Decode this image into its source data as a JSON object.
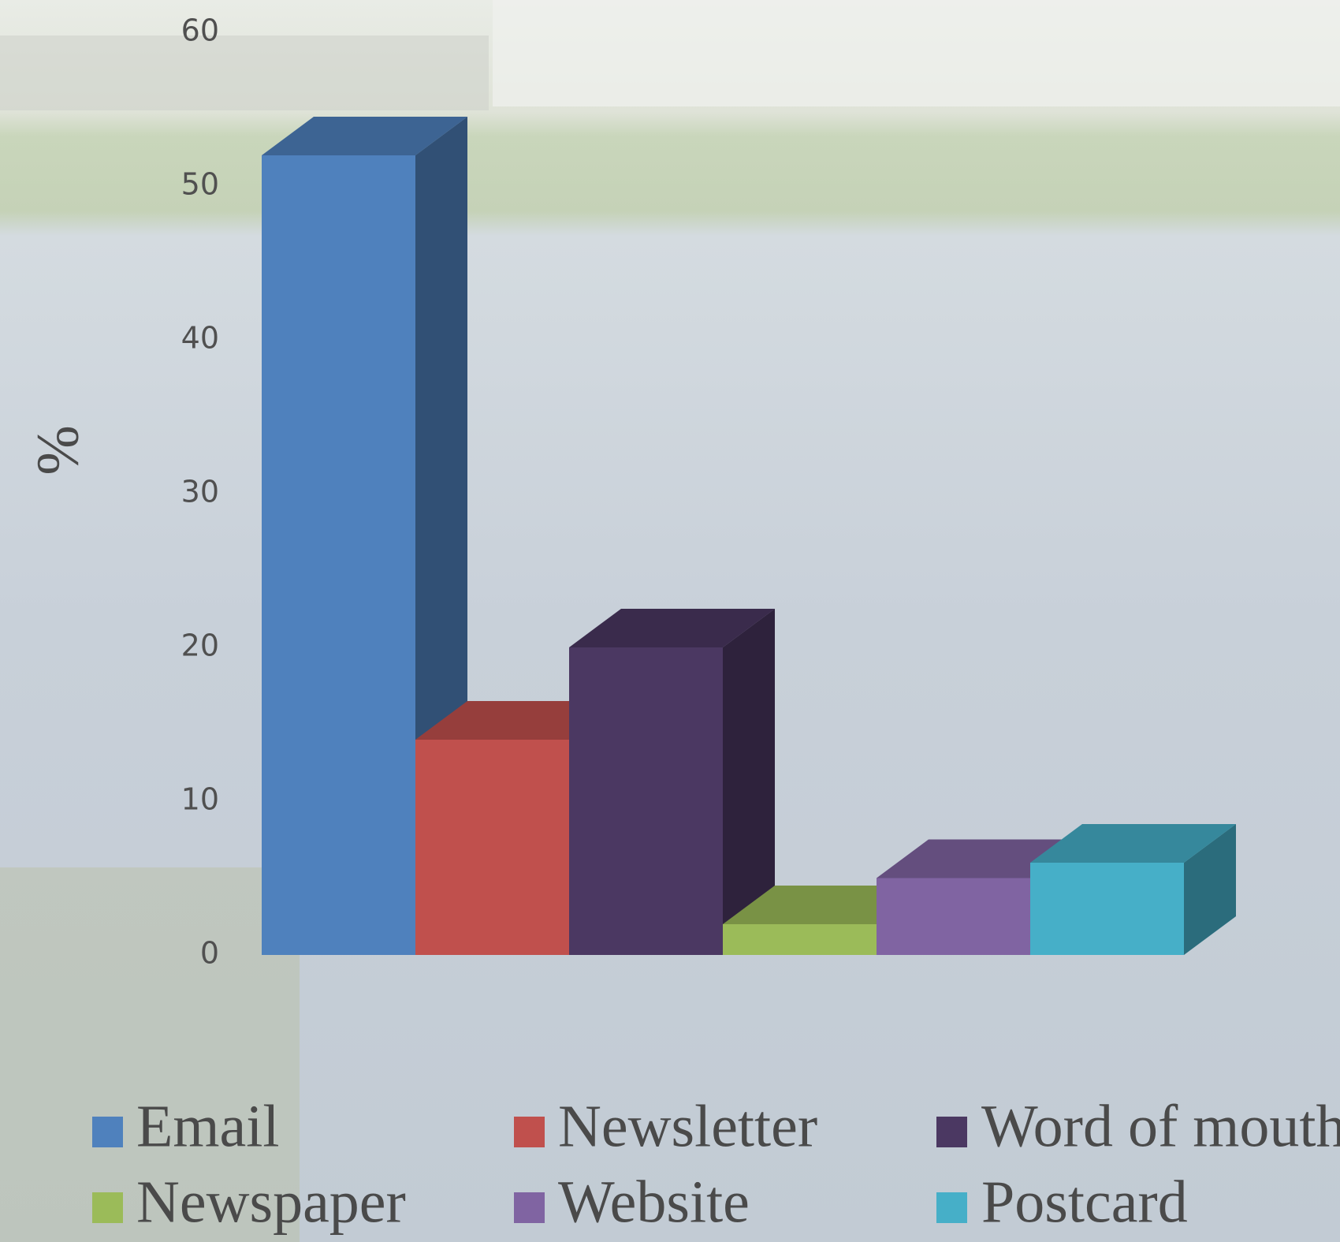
{
  "chart_data": {
    "type": "bar3d",
    "y_label": "%",
    "series": [
      {
        "name": "Email",
        "color": "#4f81bd",
        "values": [
          52
        ]
      },
      {
        "name": "Newsletter",
        "color": "#c0504d",
        "values": [
          14
        ]
      },
      {
        "name": "Word of mouth",
        "color": "#4b3862",
        "values": [
          20
        ]
      },
      {
        "name": "Newspaper",
        "color": "#9bbb59",
        "values": [
          2
        ]
      },
      {
        "name": "Website",
        "color": "#8064a2",
        "values": [
          5
        ]
      },
      {
        "name": "Postcard",
        "color": "#46afc8",
        "values": [
          6
        ]
      }
    ],
    "ylim": [
      0,
      60
    ],
    "yticks": [
      0,
      10,
      20,
      30,
      40,
      50,
      60
    ]
  }
}
